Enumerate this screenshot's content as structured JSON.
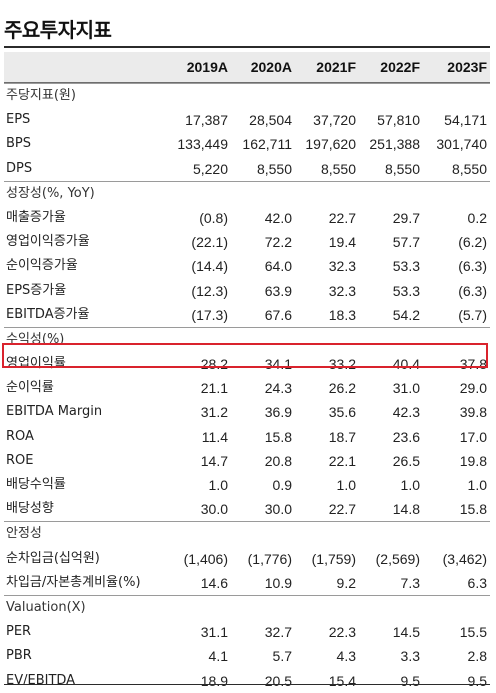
{
  "title": "주요투자지표",
  "years": [
    "2019A",
    "2020A",
    "2021F",
    "2022F",
    "2023F"
  ],
  "highlight_color": "#d9232d",
  "rows": [
    {
      "label": "주당지표(원)",
      "section": true,
      "values": [
        "",
        "",
        "",
        "",
        ""
      ]
    },
    {
      "label": "EPS",
      "values": [
        "17,387",
        "28,504",
        "37,720",
        "57,810",
        "54,171"
      ]
    },
    {
      "label": "BPS",
      "values": [
        "133,449",
        "162,711",
        "197,620",
        "251,388",
        "301,740"
      ]
    },
    {
      "label": "DPS",
      "values": [
        "5,220",
        "8,550",
        "8,550",
        "8,550",
        "8,550"
      ]
    },
    {
      "label": "성장성(%, YoY)",
      "section": true,
      "values": [
        "",
        "",
        "",
        "",
        ""
      ]
    },
    {
      "label": "매출증가율",
      "values": [
        "(0.8)",
        "42.0",
        "22.7",
        "29.7",
        "0.2"
      ]
    },
    {
      "label": "영업이익증가율",
      "values": [
        "(22.1)",
        "72.2",
        "19.4",
        "57.7",
        "(6.2)"
      ]
    },
    {
      "label": "순이익증가율",
      "values": [
        "(14.4)",
        "64.0",
        "32.3",
        "53.3",
        "(6.3)"
      ]
    },
    {
      "label": "EPS증가율",
      "values": [
        "(12.3)",
        "63.9",
        "32.3",
        "53.3",
        "(6.3)"
      ]
    },
    {
      "label": "EBITDA증가율",
      "values": [
        "(17.3)",
        "67.6",
        "18.3",
        "54.2",
        "(5.7)"
      ]
    },
    {
      "label": "수익성(%)",
      "section": true,
      "values": [
        "",
        "",
        "",
        "",
        ""
      ]
    },
    {
      "label": "영업이익률",
      "highlighted": true,
      "values": [
        "28.2",
        "34.1",
        "33.2",
        "40.4",
        "37.8"
      ]
    },
    {
      "label": "순이익률",
      "values": [
        "21.1",
        "24.3",
        "26.2",
        "31.0",
        "29.0"
      ]
    },
    {
      "label": "EBITDA Margin",
      "values": [
        "31.2",
        "36.9",
        "35.6",
        "42.3",
        "39.8"
      ]
    },
    {
      "label": "ROA",
      "values": [
        "11.4",
        "15.8",
        "18.7",
        "23.6",
        "17.0"
      ]
    },
    {
      "label": "ROE",
      "values": [
        "14.7",
        "20.8",
        "22.1",
        "26.5",
        "19.8"
      ]
    },
    {
      "label": "배당수익률",
      "values": [
        "1.0",
        "0.9",
        "1.0",
        "1.0",
        "1.0"
      ]
    },
    {
      "label": "배당성향",
      "values": [
        "30.0",
        "30.0",
        "22.7",
        "14.8",
        "15.8"
      ]
    },
    {
      "label": "안정성",
      "section": true,
      "values": [
        "",
        "",
        "",
        "",
        ""
      ]
    },
    {
      "label": "순차입금(십억원)",
      "values": [
        "(1,406)",
        "(1,776)",
        "(1,759)",
        "(2,569)",
        "(3,462)"
      ]
    },
    {
      "label": "차입금/자본총계비율(%)",
      "values": [
        "14.6",
        "10.9",
        "9.2",
        "7.3",
        "6.3"
      ]
    },
    {
      "label": "Valuation(X)",
      "section": true,
      "values": [
        "",
        "",
        "",
        "",
        ""
      ]
    },
    {
      "label": "PER",
      "values": [
        "31.1",
        "32.7",
        "22.3",
        "14.5",
        "15.5"
      ]
    },
    {
      "label": "PBR",
      "values": [
        "4.1",
        "5.7",
        "4.3",
        "3.3",
        "2.8"
      ]
    },
    {
      "label": "EV/EBITDA",
      "values": [
        "18.9",
        "20.5",
        "15.4",
        "9.5",
        "9.5"
      ]
    }
  ]
}
